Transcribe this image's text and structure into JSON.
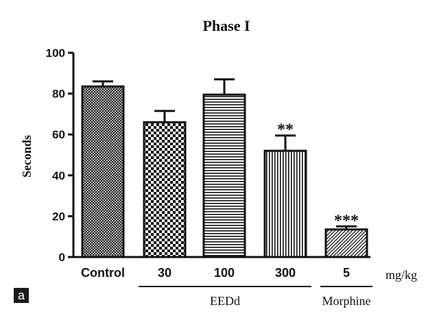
{
  "chart_data": {
    "type": "bar",
    "title": "Phase I",
    "ylabel": "Seconds",
    "xlabel": "",
    "ylim": [
      0,
      100
    ],
    "yticks": [
      0,
      20,
      40,
      60,
      80,
      100
    ],
    "grid": false,
    "categories": [
      "Control",
      "30",
      "100",
      "300",
      "5"
    ],
    "values": [
      83.5,
      66,
      79.5,
      52,
      13.5
    ],
    "errors": [
      2.5,
      5.5,
      7.5,
      7.5,
      1.5
    ],
    "significance": [
      "",
      "",
      "",
      "**",
      "***"
    ],
    "patterns": [
      "crosshatch",
      "checker",
      "horizontal",
      "vertical",
      "diagonal"
    ],
    "unit_label": "mg/kg",
    "groups": [
      {
        "label": "EEDd",
        "from": 1,
        "to": 3
      },
      {
        "label": "Morphine",
        "from": 4,
        "to": 4
      }
    ],
    "panel_label": "a",
    "colors": {
      "ink": "#111111",
      "background": "#ffffff",
      "panel_label_bg": "#1a1a1a",
      "panel_label_fg": "#ffffff"
    }
  }
}
